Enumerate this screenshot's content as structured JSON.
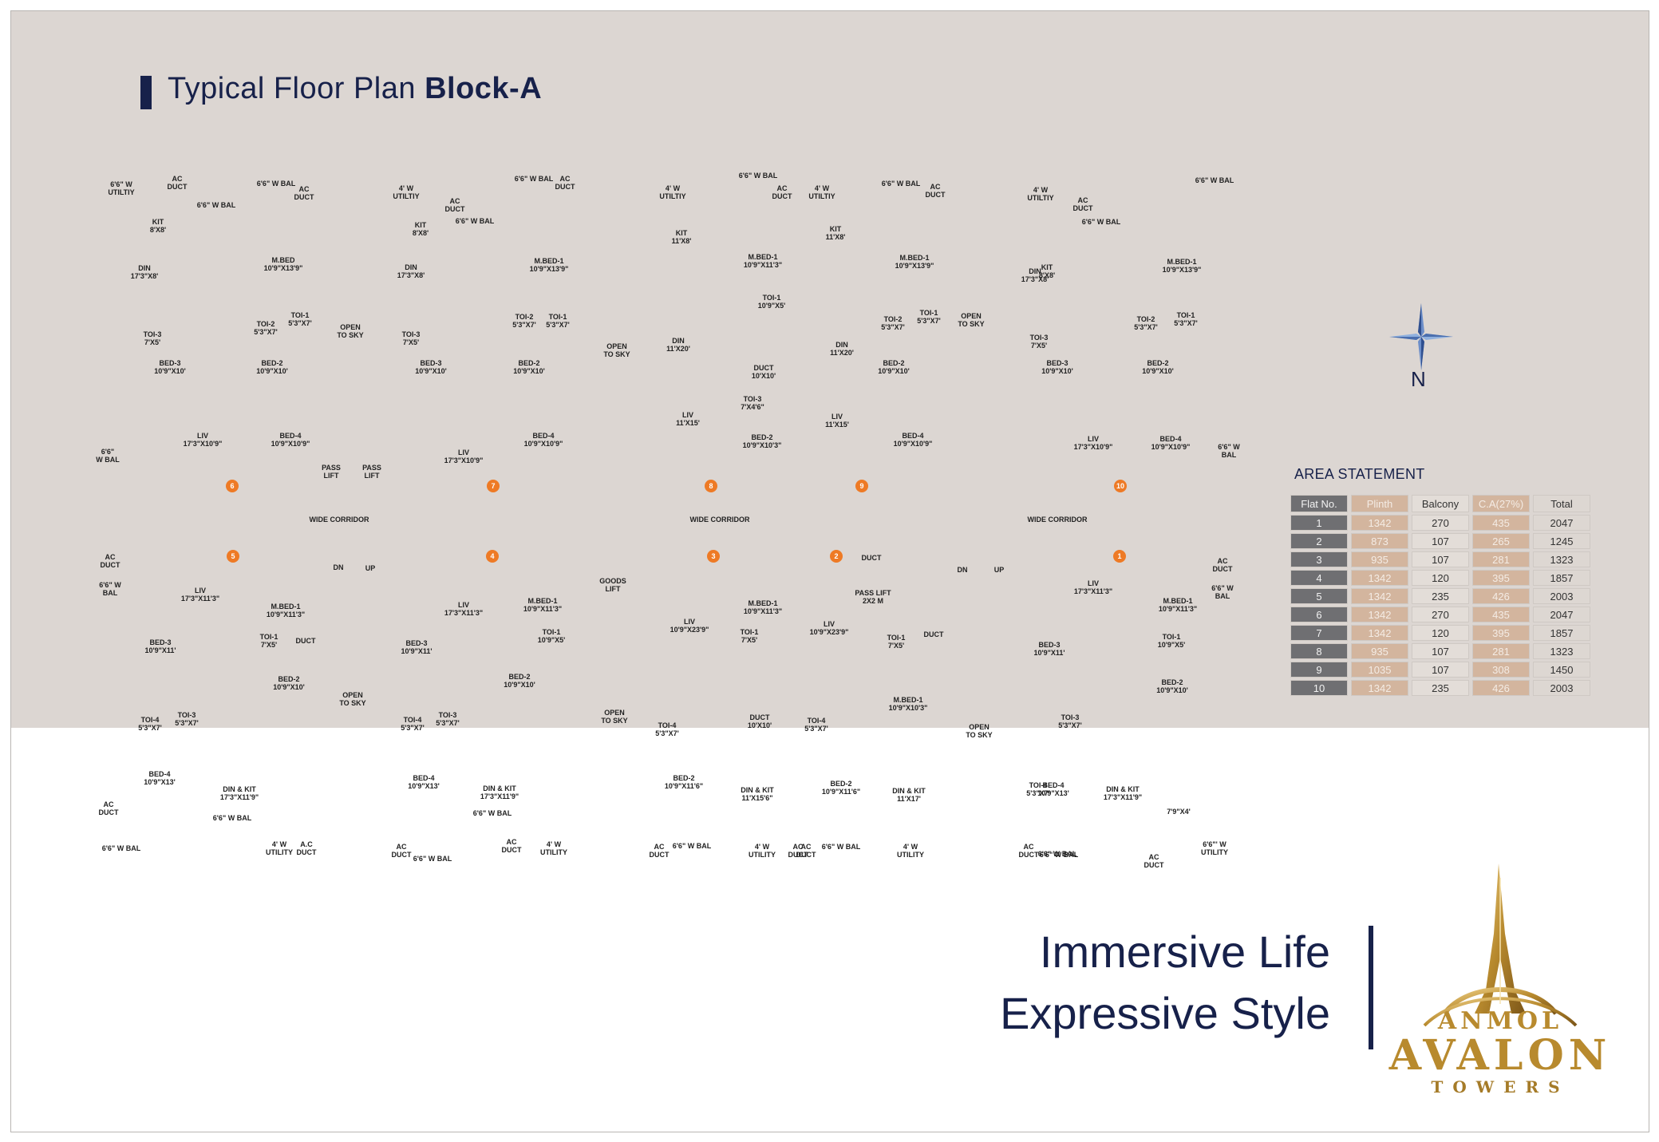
{
  "header": {
    "title_prefix": "Typical Floor Plan ",
    "title_bold": "Block-A"
  },
  "compass": {
    "label": "N"
  },
  "area_statement": {
    "title": "AREA STATEMENT",
    "columns": [
      "Flat No.",
      "Plinth",
      "Balcony",
      "C.A(27%)",
      "Total"
    ],
    "rows": [
      [
        "1",
        "1342",
        "270",
        "435",
        "2047"
      ],
      [
        "2",
        "873",
        "107",
        "265",
        "1245"
      ],
      [
        "3",
        "935",
        "107",
        "281",
        "1323"
      ],
      [
        "4",
        "1342",
        "120",
        "395",
        "1857"
      ],
      [
        "5",
        "1342",
        "235",
        "426",
        "2003"
      ],
      [
        "6",
        "1342",
        "270",
        "435",
        "2047"
      ],
      [
        "7",
        "1342",
        "120",
        "395",
        "1857"
      ],
      [
        "8",
        "935",
        "107",
        "281",
        "1323"
      ],
      [
        "9",
        "1035",
        "107",
        "308",
        "1450"
      ],
      [
        "10",
        "1342",
        "235",
        "426",
        "2003"
      ]
    ]
  },
  "tagline": {
    "line1": "Immersive Life",
    "line2": "Expressive Style"
  },
  "logo": {
    "anmol": "ANMOL",
    "avalon": "AVALON",
    "towers": "TOWERS"
  },
  "colors": {
    "navy": "#17214a",
    "gold": "#b88a2e",
    "marker": "#ee7a25",
    "panel": "#dcd6d2"
  },
  "flat_markers": [
    "6",
    "7",
    "8",
    "9",
    "10",
    "5",
    "4",
    "3",
    "2",
    "1"
  ],
  "room_labels": [
    "6'6\" W\nUTILTIY",
    "AC\nDUCT",
    "6'6\" W BAL",
    "AC\nDUCT",
    "6'6\" W BAL",
    "KIT\n8'X8'",
    "DIN\n17'3\"X8'",
    "M.BED\n10'9\"X13'9\"",
    "TOI-3\n7'X5'",
    "TOI-2\n5'3\"X7'",
    "TOI-1\n5'3\"X7'",
    "OPEN\nTO SKY",
    "BED-3\n10'9\"X10'",
    "BED-2\n10'9\"X10'",
    "6'6\"\nW BAL",
    "LIV\n17'3\"X10'9\"",
    "BED-4\n10'9\"X10'9\"",
    "PASS\nLIFT",
    "PASS\nLIFT",
    "WIDE CORRIDOR",
    "AC\nDUCT",
    "6'6\" W\nBAL",
    "DN",
    "UP",
    "LIV\n17'3\"X11'3\"",
    "M.BED-1\n10'9\"X11'3\"",
    "BED-3\n10'9\"X11'",
    "TOI-1\n7'X5'",
    "DUCT",
    "BED-2\n10'9\"X10'",
    "OPEN\nTO SKY",
    "TOI-4\n5'3\"X7'",
    "TOI-3\n5'3\"X7'",
    "BED-4\n10'9\"X13'",
    "DIN & KIT\n17'3\"X11'9\"",
    "AC\nDUCT",
    "6'6\" W BAL",
    "4' W\nUTILITY",
    "A.C\nDUCT",
    "6'6\" W BAL",
    "4' W\nUTILTIY",
    "AC\nDUCT",
    "6'6\" W BAL",
    "AC\nDUCT",
    "6'6\" W BAL",
    "KIT\n8'X8'",
    "DIN\n17'3\"X8'",
    "M.BED-1\n10'9\"X13'9\"",
    "TOI-3\n7'X5'",
    "TOI-2\n5'3\"X7'",
    "TOI-1\n5'3\"X7'",
    "BED-3\n10'9\"X10'",
    "BED-2\n10'9\"X10'",
    "LIV\n17'3\"X10'9\"",
    "BED-4\n10'9\"X10'9\"",
    "LIV\n17'3\"X11'3\"",
    "M.BED-1\n10'9\"X11'3\"",
    "BED-3\n10'9\"X11'",
    "TOI-1\n10'9\"X5'",
    "BED-2\n10'9\"X10'",
    "TOI-4\n5'3\"X7'",
    "TOI-3\n5'3\"X7'",
    "BED-4\n10'9\"X13'",
    "DIN & KIT\n17'3\"X11'9\"",
    "6'6\" W BAL",
    "AC\nDUCT",
    "AC\nDUCT",
    "4' W\nUTILITY",
    "6'6\" W BAL",
    "4' W\nUTILTIY",
    "KIT\n11'X8'",
    "OPEN\nTO SKY",
    "DIN\n11'X20'",
    "LIV\n11'X15'",
    "GOODS\nLIFT",
    "LIV\n10'9\"X23'9\"",
    "OPEN\nTO SKY",
    "TOI-4\n5'3\"X7'",
    "BED-2\n10'9\"X11'6\"",
    "AC\nDUCT",
    "6'6\" W BAL",
    "DIN & KIT\n11'X15'6\"",
    "4' W\nUTILITY",
    "AC\nDUCT",
    "TOI-1\n7'X5'",
    "M.BED-1\n10'9\"X11'3\"",
    "DUCT\n10'X10'",
    "6'6\" W BAL",
    "AC\nDUCT",
    "4' W\nUTILTIY",
    "M.BED-1\n10'9\"X11'3\"",
    "TOI-1\n10'9\"X5'",
    "DUCT\n10'X10'",
    "TOI-3\n7'X4'6\"",
    "BED-2\n10'9\"X10'3\"",
    "WIDE CORRIDOR",
    "KIT\n11'X8'",
    "DIN\n11'X20'",
    "LIV\n11'X15'",
    "6'6\" W BAL",
    "AC\nDUCT",
    "M.BED-1\n10'9\"X13'9\"",
    "TOI-2\n5'3\"X7'",
    "TOI-1\n5'3\"X7'",
    "OPEN\nTO SKY",
    "BED-2\n10'9\"X10'",
    "BED-4\n10'9\"X10'9\"",
    "DUCT",
    "PASS LIFT\n2X2 M",
    "LIV\n10'9\"X23'9\"",
    "TOI-1\n7'X5'",
    "DUCT",
    "M.BED-1\n10'9\"X10'3\"",
    "TOI-4\n5'3\"X7'",
    "BED-2\n10'9\"X11'6\"",
    "DIN & KIT\n11'X17'",
    "AC\nDUCT",
    "6'6\" W BAL",
    "4' W\nUTILITY",
    "OPEN\nTO SKY",
    "4' W\nUTILTIY",
    "AC\nDUCT",
    "6'6\" W BAL",
    "KIT\n8'X8'",
    "DIN\n17'3\"X8'",
    "TOI-3\n7'X5'",
    "BED-3\n10'9\"X10'",
    "WIDE CORRIDOR",
    "DN",
    "UP",
    "LIV\n17'3\"X11'3\"",
    "BED-3\n10'9\"X11'",
    "TOI-4\n5'3\"X7'",
    "TOI-3\n5'3\"X7'",
    "BED-4\n10'9\"X13'",
    "DIN & KIT\n17'3\"X11'9\"",
    "AC\nDUCT",
    "6'6\" W BAL",
    "6'6\" W BAL",
    "AC\nDUCT",
    "6'6\" W BAL",
    "M.BED-1\n10'9\"X13'9\"",
    "TOI-2\n5'3\"X7'",
    "TOI-1\n5'3\"X7'",
    "BED-2\n10'9\"X10'",
    "LIV\n17'3\"X10'9\"",
    "BED-4\n10'9\"X10'9\"",
    "6'6\" W\nBAL",
    "AC\nDUCT",
    "6'6\" W\nBAL",
    "M.BED-1\n10'9\"X11'3\"",
    "TOI-1\n10'9\"X5'",
    "BED-2\n10'9\"X10'",
    "7'9\"X4'",
    "6'6\"' W\nUTILITY"
  ]
}
